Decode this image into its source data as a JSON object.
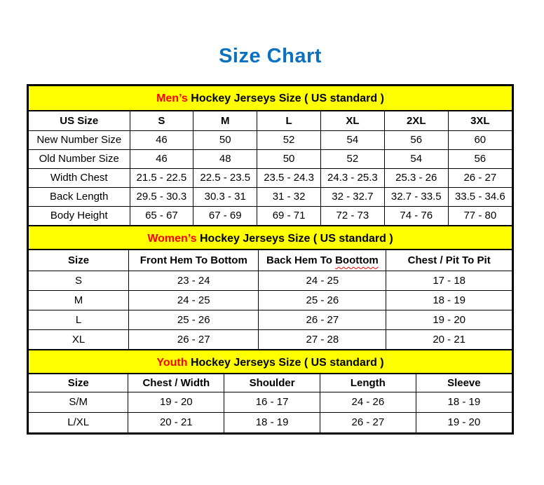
{
  "page_title": "Size Chart",
  "colors": {
    "title_blue": "#0a70c0",
    "highlight_red": "#ff0000",
    "band_yellow": "#ffff00",
    "line_black": "#000000"
  },
  "mens": {
    "heading_highlight": "Men’s",
    "heading_rest": " Hockey Jerseys Size ( US standard )",
    "columns": [
      "US Size",
      "S",
      "M",
      "L",
      "XL",
      "2XL",
      "3XL"
    ],
    "rows": [
      {
        "label": "New Number Size",
        "values": [
          "46",
          "50",
          "52",
          "54",
          "56",
          "60"
        ]
      },
      {
        "label": "Old Number Size",
        "values": [
          "46",
          "48",
          "50",
          "52",
          "54",
          "56"
        ]
      },
      {
        "label": "Width Chest",
        "values": [
          "21.5 - 22.5",
          "22.5 - 23.5",
          "23.5 - 24.3",
          "24.3 - 25.3",
          "25.3 - 26",
          "26 - 27"
        ]
      },
      {
        "label": "Back Length",
        "values": [
          "29.5 - 30.3",
          "30.3 - 31",
          "31 - 32",
          "32 - 32.7",
          "32.7 - 33.5",
          "33.5 - 34.6"
        ]
      },
      {
        "label": "Body Height",
        "values": [
          "65 - 67",
          "67 - 69",
          "69 - 71",
          "72 - 73",
          "74 - 76",
          "77 - 80"
        ]
      }
    ]
  },
  "womens": {
    "heading_highlight": "Women’s",
    "heading_rest": " Hockey Jerseys Size ( US standard )",
    "columns": {
      "size": "Size",
      "front_hem": "Front Hem To Bottom",
      "back_hem_prefix": "Back Hem To ",
      "back_hem_misspelled": "Boottom",
      "chest": "Chest / Pit To Pit"
    },
    "rows": [
      {
        "label": "S",
        "values": [
          "23 - 24",
          "24 - 25",
          "17 - 18"
        ]
      },
      {
        "label": "M",
        "values": [
          "24 - 25",
          "25 - 26",
          "18 - 19"
        ]
      },
      {
        "label": "L",
        "values": [
          "25 - 26",
          "26 - 27",
          "19 - 20"
        ]
      },
      {
        "label": "XL",
        "values": [
          "26 - 27",
          "27 - 28",
          "20 - 21"
        ]
      }
    ]
  },
  "youth": {
    "heading_highlight": "Youth",
    "heading_rest": " Hockey Jerseys Size ( US standard )",
    "columns": [
      "Size",
      "Chest / Width",
      "Shoulder",
      "Length",
      "Sleeve"
    ],
    "rows": [
      {
        "label": "S/M",
        "values": [
          "19 - 20",
          "16 - 17",
          "24 - 26",
          "18 - 19"
        ]
      },
      {
        "label": "L/XL",
        "values": [
          "20 - 21",
          "18 - 19",
          "26 - 27",
          "19 - 20"
        ]
      }
    ]
  }
}
